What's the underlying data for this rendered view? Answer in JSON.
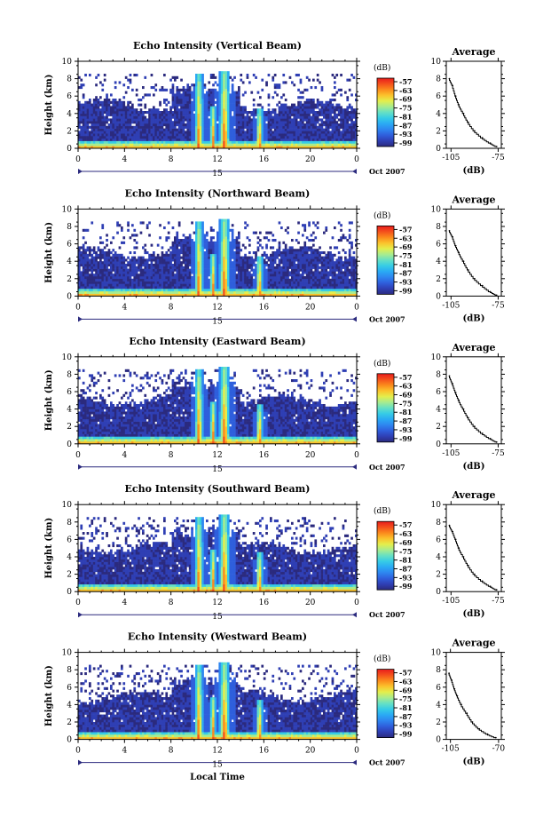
{
  "page": {
    "xlabel_bottom": "Local Time"
  },
  "colors": {
    "colormap": [
      "#2b2a7e",
      "#2f3fb4",
      "#2f5fdc",
      "#2e86f0",
      "#2aaaf4",
      "#36cce6",
      "#66e0c4",
      "#a8ec8e",
      "#e4ee4c",
      "#fbc22c",
      "#fb8a1c",
      "#f4501c",
      "#e81c1c"
    ],
    "background": "#ffffff",
    "date_arrow": "#2b2a7e"
  },
  "chart_data": [
    {
      "type": "heatmap",
      "title": "Echo Intensity (Vertical Beam)",
      "ylabel": "Height (km)",
      "x_ticks": [
        "0",
        "4",
        "8",
        "12",
        "16",
        "20",
        "0"
      ],
      "y_ticks": [
        "0",
        "2",
        "4",
        "6",
        "8",
        "10"
      ],
      "xlim": [
        0,
        24
      ],
      "ylim": [
        0,
        10
      ],
      "date_day": "15",
      "date_month_year": "Oct 2007",
      "colorbar": {
        "label": "(dB)",
        "ticks": [
          "-57",
          "-63",
          "-69",
          "-75",
          "-81",
          "-87",
          "-93",
          "-99"
        ]
      },
      "profile": {
        "title": "Average",
        "xlabel": "(dB)",
        "x_ticks": [
          "-105",
          "-75"
        ],
        "y_ticks": [
          "0",
          "2",
          "4",
          "6",
          "8",
          "10"
        ],
        "points": [
          [
            -106,
            8.0
          ],
          [
            -104,
            7.2
          ],
          [
            -102,
            6.0
          ],
          [
            -100,
            5.0
          ],
          [
            -97,
            4.0
          ],
          [
            -94,
            3.0
          ],
          [
            -90,
            2.0
          ],
          [
            -85,
            1.2
          ],
          [
            -80,
            0.6
          ],
          [
            -76,
            0.2
          ]
        ]
      }
    },
    {
      "type": "heatmap",
      "title": "Echo Intensity (Northward Beam)",
      "ylabel": "Height (km)",
      "x_ticks": [
        "0",
        "4",
        "8",
        "12",
        "16",
        "20",
        "0"
      ],
      "y_ticks": [
        "0",
        "2",
        "4",
        "6",
        "8",
        "10"
      ],
      "xlim": [
        0,
        24
      ],
      "ylim": [
        0,
        10
      ],
      "date_day": "15",
      "date_month_year": "Oct 2007",
      "colorbar": {
        "label": "(dB)",
        "ticks": [
          "-57",
          "-63",
          "-69",
          "-75",
          "-81",
          "-87",
          "-93",
          "-99"
        ]
      },
      "profile": {
        "title": "Average",
        "xlabel": "(dB)",
        "x_ticks": [
          "-105",
          "-75"
        ],
        "y_ticks": [
          "0",
          "2",
          "4",
          "6",
          "8",
          "10"
        ],
        "points": [
          [
            -106,
            7.5
          ],
          [
            -104,
            6.8
          ],
          [
            -102,
            5.8
          ],
          [
            -100,
            5.0
          ],
          [
            -97,
            4.0
          ],
          [
            -94,
            3.0
          ],
          [
            -90,
            2.0
          ],
          [
            -85,
            1.2
          ],
          [
            -80,
            0.5
          ],
          [
            -76,
            0.1
          ]
        ]
      }
    },
    {
      "type": "heatmap",
      "title": "Echo Intensity (Eastward Beam)",
      "ylabel": "Height (km)",
      "x_ticks": [
        "0",
        "4",
        "8",
        "12",
        "16",
        "20",
        "0"
      ],
      "y_ticks": [
        "0",
        "2",
        "4",
        "6",
        "8",
        "10"
      ],
      "xlim": [
        0,
        24
      ],
      "ylim": [
        0,
        10
      ],
      "date_day": "15",
      "date_month_year": "Oct 2007",
      "colorbar": {
        "label": "(dB)",
        "ticks": [
          "-57",
          "-63",
          "-69",
          "-75",
          "-81",
          "-87",
          "-93",
          "-99"
        ]
      },
      "profile": {
        "title": "Average",
        "xlabel": "(dB)",
        "x_ticks": [
          "-105",
          "-75"
        ],
        "y_ticks": [
          "0",
          "2",
          "4",
          "6",
          "8",
          "10"
        ],
        "points": [
          [
            -106,
            7.8
          ],
          [
            -104,
            6.9
          ],
          [
            -102,
            5.9
          ],
          [
            -100,
            5.0
          ],
          [
            -97,
            4.0
          ],
          [
            -94,
            3.0
          ],
          [
            -90,
            2.0
          ],
          [
            -85,
            1.2
          ],
          [
            -80,
            0.6
          ],
          [
            -76,
            0.2
          ]
        ]
      }
    },
    {
      "type": "heatmap",
      "title": "Echo Intensity (Southward Beam)",
      "ylabel": "Height (km)",
      "x_ticks": [
        "0",
        "4",
        "8",
        "12",
        "16",
        "20",
        "0"
      ],
      "y_ticks": [
        "0",
        "2",
        "4",
        "6",
        "8",
        "10"
      ],
      "xlim": [
        0,
        24
      ],
      "ylim": [
        0,
        10
      ],
      "date_day": "15",
      "date_month_year": "Oct 2007",
      "colorbar": {
        "label": "(dB)",
        "ticks": [
          "-57",
          "-63",
          "-69",
          "-75",
          "-81",
          "-87",
          "-93",
          "-99"
        ]
      },
      "profile": {
        "title": "Average",
        "xlabel": "(dB)",
        "x_ticks": [
          "-105",
          "-75"
        ],
        "y_ticks": [
          "0",
          "2",
          "4",
          "6",
          "8",
          "10"
        ],
        "points": [
          [
            -106,
            7.6
          ],
          [
            -104,
            6.9
          ],
          [
            -102,
            6.0
          ],
          [
            -100,
            5.0
          ],
          [
            -97,
            4.0
          ],
          [
            -94,
            3.0
          ],
          [
            -90,
            2.0
          ],
          [
            -85,
            1.2
          ],
          [
            -80,
            0.6
          ],
          [
            -76,
            0.2
          ]
        ]
      }
    },
    {
      "type": "heatmap",
      "title": "Echo Intensity (Westward Beam)",
      "ylabel": "Height (km)",
      "x_ticks": [
        "0",
        "4",
        "8",
        "12",
        "16",
        "20",
        "0"
      ],
      "y_ticks": [
        "0",
        "2",
        "4",
        "6",
        "8",
        "10"
      ],
      "xlim": [
        0,
        24
      ],
      "ylim": [
        0,
        10
      ],
      "date_day": "15",
      "date_month_year": "Oct 2007",
      "colorbar": {
        "label": "(dB)",
        "ticks": [
          "-57",
          "-63",
          "-69",
          "-75",
          "-81",
          "-87",
          "-93",
          "-99"
        ]
      },
      "profile": {
        "title": "Average",
        "xlabel": "(dB)",
        "x_ticks": [
          "-105",
          "-70"
        ],
        "y_ticks": [
          "0",
          "2",
          "4",
          "6",
          "8",
          "10"
        ],
        "points": [
          [
            -106,
            7.6
          ],
          [
            -104,
            6.8
          ],
          [
            -102,
            5.8
          ],
          [
            -100,
            5.0
          ],
          [
            -97,
            4.0
          ],
          [
            -93,
            3.0
          ],
          [
            -89,
            2.0
          ],
          [
            -84,
            1.2
          ],
          [
            -78,
            0.6
          ],
          [
            -72,
            0.2
          ]
        ]
      }
    }
  ]
}
